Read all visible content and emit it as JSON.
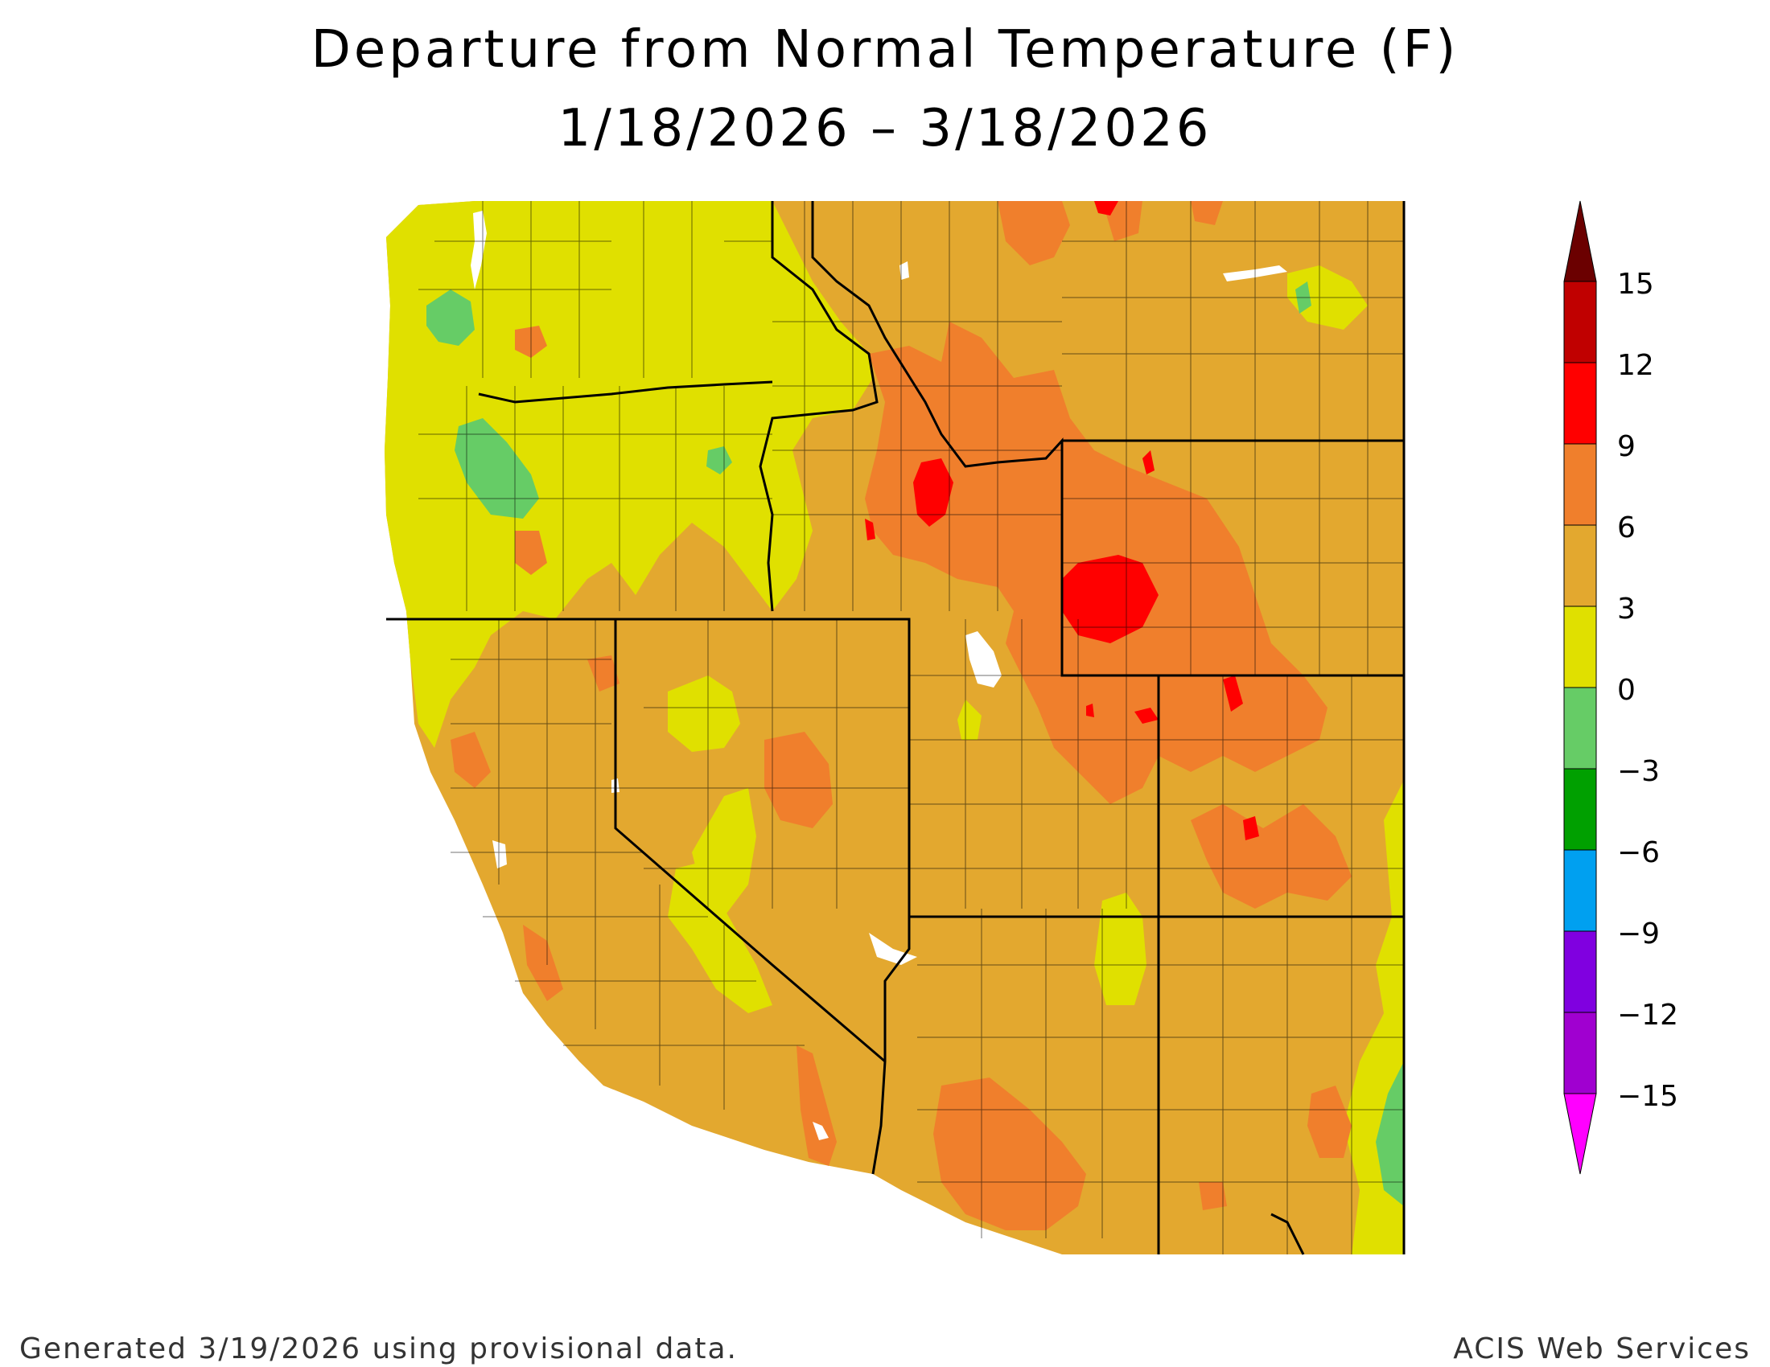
{
  "title": {
    "line1": "Departure from Normal Temperature (F)",
    "line2": "1/18/2026 – 3/18/2026"
  },
  "footer": {
    "left": "Generated 3/19/2026 using provisional data.",
    "right": "ACIS Web Services"
  },
  "legend": {
    "ticks": [
      "15",
      "12",
      "9",
      "6",
      "3",
      "0",
      "−3",
      "−6",
      "−9",
      "−12",
      "−15"
    ],
    "colors": [
      "#6b0000",
      "#c00000",
      "#ff0000",
      "#f07f2c",
      "#e3a82f",
      "#e0e000",
      "#66cc66",
      "#00a000",
      "#00a0f0",
      "#8000e0",
      "#a000d0",
      "#ff00ff"
    ]
  },
  "map": {
    "region": "western-us",
    "colors": {
      "below_0": "#66cc66",
      "0_to_3": "#e0e000",
      "3_to_6": "#e3a82f",
      "6_to_9": "#f07f2c",
      "9_to_12": "#ff0000",
      "water": "#ffffff"
    }
  }
}
